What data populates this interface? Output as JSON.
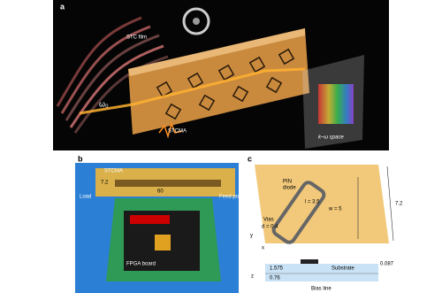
{
  "panel_a": {
    "label": "a",
    "stc_film": "STC film",
    "omega": "ω₀",
    "metasurface": "STCMA",
    "space": "k–ω space"
  },
  "panel_b": {
    "label": "b",
    "stcma": "STCMA",
    "height": "7.2",
    "length": "60",
    "load": "Load",
    "feed": "Feed port",
    "fpga": "FPGA board"
  },
  "panel_c": {
    "label": "c",
    "diode": [
      "PIN",
      "diode"
    ],
    "l": "l = 3.5",
    "w": "w = 5",
    "side": "7.2",
    "vias": "Vias",
    "d": "d = 0.4",
    "axes": [
      "x",
      "y",
      "z"
    ],
    "thickness": [
      "1.575",
      "0.76",
      "0.087"
    ],
    "substrate": "Substrate",
    "bias": "Bias line"
  }
}
